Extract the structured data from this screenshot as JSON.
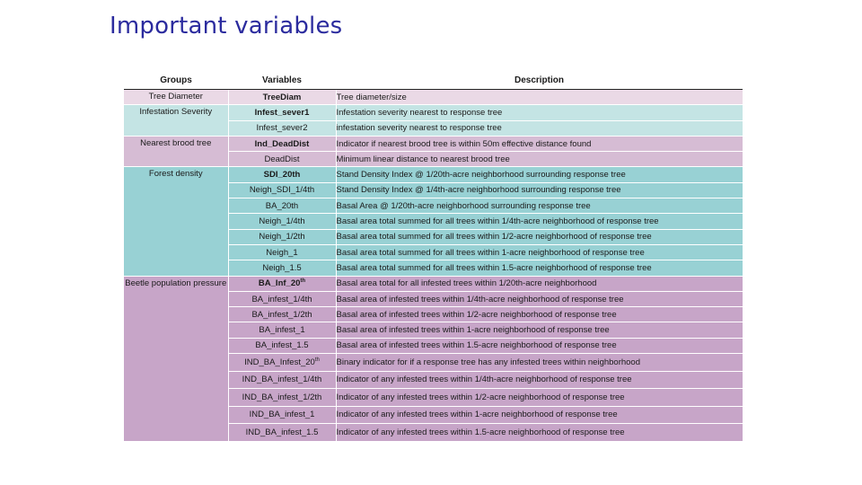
{
  "title": "Important variables",
  "table": {
    "headers": [
      "Groups",
      "Variables",
      "Description"
    ],
    "groups": [
      {
        "name": "Tree Diameter",
        "rows": [
          {
            "variable": "TreeDiam",
            "bold": true,
            "description": "Tree diameter/size"
          }
        ]
      },
      {
        "name": "Infestation Severity",
        "rows": [
          {
            "variable": "Infest_sever1",
            "bold": true,
            "description": "Infestation severity nearest to response tree"
          },
          {
            "variable": "Infest_sever2",
            "bold": false,
            "description": "infestation severity nearest to response tree"
          }
        ]
      },
      {
        "name": "Nearest brood tree",
        "rows": [
          {
            "variable": "Ind_DeadDist",
            "bold": true,
            "description": "Indicator if nearest brood tree is within 50m effective distance found"
          },
          {
            "variable": "DeadDist",
            "bold": false,
            "description": "Minimum linear distance to nearest brood tree"
          }
        ]
      },
      {
        "name": "Forest density",
        "rows": [
          {
            "variable": "SDI_20th",
            "bold": true,
            "description": "Stand Density Index @ 1/20th-acre neighborhood surrounding response tree"
          },
          {
            "variable": "Neigh_SDI_1/4th",
            "bold": false,
            "description": "Stand Density Index @ 1/4th-acre neighborhood surrounding response tree"
          },
          {
            "variable": "BA_20th",
            "bold": false,
            "description": "Basal Area @ 1/20th-acre neighborhood surrounding response tree"
          },
          {
            "variable": "Neigh_1/4th",
            "bold": false,
            "description": "Basal area total summed for all trees within 1/4th-acre neighborhood of response tree"
          },
          {
            "variable": "Neigh_1/2th",
            "bold": false,
            "description": "Basal area total summed for all trees within 1/2-acre neighborhood of response tree"
          },
          {
            "variable": "Neigh_1",
            "bold": false,
            "description": "Basal area total summed for all trees within 1-acre neighborhood of response tree"
          },
          {
            "variable": "Neigh_1.5",
            "bold": false,
            "description": "Basal area total summed for all trees within 1.5-acre neighborhood of response tree"
          }
        ]
      },
      {
        "name": "Beetle population pressure",
        "rows": [
          {
            "variable": "BA_Inf_20",
            "sup": "th",
            "bold": true,
            "description": "Basal area total for all infested trees within 1/20th-acre neighborhood"
          },
          {
            "variable": "BA_infest_1/4th",
            "bold": false,
            "description": "Basal area of infested trees within 1/4th-acre neighborhood of response tree"
          },
          {
            "variable": "BA_infest_1/2th",
            "bold": false,
            "description": "Basal area of infested trees within 1/2-acre neighborhood of response tree"
          },
          {
            "variable": "BA_infest_1",
            "bold": false,
            "description": "Basal area of infested trees within 1-acre neighborhood of response tree"
          },
          {
            "variable": "BA_infest_1.5",
            "bold": false,
            "description": "Basal area of infested trees within 1.5-acre neighborhood of response tree"
          },
          {
            "variable": "IND_BA_Infest_20",
            "sup": "th",
            "bold": false,
            "tall": true,
            "description": "Binary indicator for if a response tree has any infested trees within neighborhood"
          },
          {
            "variable": "IND_BA_infest_1/4th",
            "bold": false,
            "tall": true,
            "description": "Indicator of any infested trees within 1/4th-acre neighborhood of response tree"
          },
          {
            "variable": "IND_BA_infest_1/2th",
            "bold": false,
            "tall": true,
            "description": "Indicator of any infested trees within 1/2-acre neighborhood of response tree"
          },
          {
            "variable": "IND_BA_infest_1",
            "bold": false,
            "tall": true,
            "description": "Indicator of any infested trees within 1-acre neighborhood of response tree"
          },
          {
            "variable": "IND_BA_infest_1.5",
            "bold": false,
            "tall": true,
            "description": "Indicator of any infested trees within 1.5-acre neighborhood of response tree"
          }
        ]
      }
    ]
  },
  "colors": {
    "title": "#2b2b9e",
    "group_backgrounds": [
      "#ead9e6",
      "#c4e4e4",
      "#d6bcd4",
      "#98d1d4",
      "#c7a5c8"
    ]
  }
}
